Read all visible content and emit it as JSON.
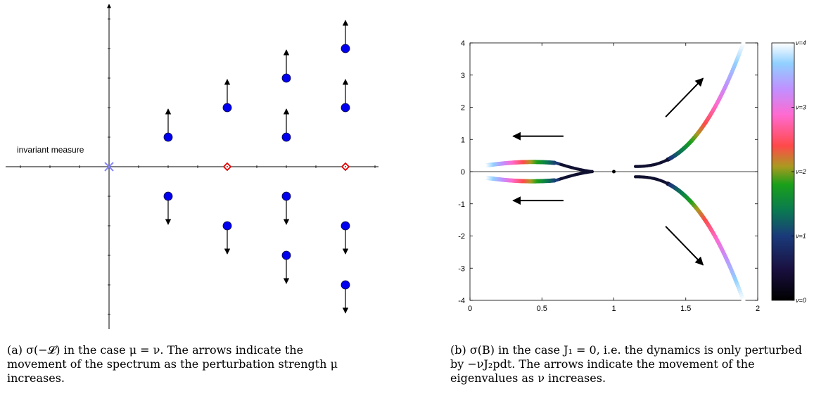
{
  "panel_a": {
    "caption": "(a) σ(−𝓛) in the case μ = ν. The arrows indicate the movement of the spectrum as the perturbation strength μ increases.",
    "annotation": "invariant measure",
    "colors": {
      "eigen": "#0000ee",
      "cross": "#8888ff",
      "diamond": "#e00000"
    }
  },
  "panel_b": {
    "caption": "(b) σ(B) in the case J₁ = 0, i.e. the dynamics is only perturbed by −νJ₂pdt. The arrows indicate the movement of the eigenvalues as ν increases."
  },
  "chart_data": [
    {
      "type": "scatter",
      "title": "",
      "xlabel": "",
      "ylabel": "",
      "grid": false,
      "points": [
        {
          "x": 0,
          "y": 0,
          "marker": "cross"
        },
        {
          "x": 2,
          "y": 0,
          "marker": "diamond"
        },
        {
          "x": 4,
          "y": 0,
          "marker": "diamond"
        },
        {
          "x": 1,
          "y": 1,
          "marker": "dot",
          "arrow": "up"
        },
        {
          "x": 1,
          "y": -1,
          "marker": "dot",
          "arrow": "down"
        },
        {
          "x": 2,
          "y": 2,
          "marker": "dot",
          "arrow": "up"
        },
        {
          "x": 2,
          "y": -2,
          "marker": "dot",
          "arrow": "down"
        },
        {
          "x": 3,
          "y": 1,
          "marker": "dot",
          "arrow": "up"
        },
        {
          "x": 3,
          "y": 3,
          "marker": "dot",
          "arrow": "up"
        },
        {
          "x": 3,
          "y": -1,
          "marker": "dot",
          "arrow": "down"
        },
        {
          "x": 3,
          "y": -3,
          "marker": "dot",
          "arrow": "down"
        },
        {
          "x": 4,
          "y": 2,
          "marker": "dot",
          "arrow": "up"
        },
        {
          "x": 4,
          "y": 4,
          "marker": "dot",
          "arrow": "up"
        },
        {
          "x": 4,
          "y": -2,
          "marker": "dot",
          "arrow": "down"
        },
        {
          "x": 4,
          "y": -4,
          "marker": "dot",
          "arrow": "down"
        }
      ]
    },
    {
      "type": "scatter",
      "title": "",
      "xlabel": "",
      "ylabel": "",
      "xlim": [
        0,
        2
      ],
      "ylim": [
        -4,
        4
      ],
      "xticks": [
        "0",
        "0.5",
        "1",
        "1.5",
        "2"
      ],
      "yticks": [
        "-4",
        "-3",
        "-2",
        "-1",
        "0",
        "1",
        "2",
        "3",
        "4"
      ],
      "colorbar": {
        "labels": [
          "ν=0",
          "ν=1",
          "ν=2",
          "ν=3",
          "ν=4"
        ],
        "range": [
          0,
          4
        ]
      },
      "branches": [
        {
          "x_start": 0.85,
          "x_end": 0.1,
          "shape": "hump-upper",
          "peak_y": 0.3
        },
        {
          "x_start": 0.85,
          "x_end": 0.1,
          "shape": "hump-lower",
          "peak_y": -0.3
        },
        {
          "x_start": 1.15,
          "x_end": 1.9,
          "shape": "rise-upper",
          "end_y": 4
        },
        {
          "x_start": 1.15,
          "x_end": 1.9,
          "shape": "rise-lower",
          "end_y": -4
        }
      ],
      "center_point": {
        "x": 1,
        "y": 0
      },
      "arrows": [
        {
          "from": [
            0.65,
            1.1
          ],
          "to": [
            0.3,
            1.1
          ]
        },
        {
          "from": [
            0.65,
            -0.9
          ],
          "to": [
            0.3,
            -0.9
          ]
        },
        {
          "from": [
            1.36,
            1.7
          ],
          "to": [
            1.62,
            2.9
          ]
        },
        {
          "from": [
            1.36,
            -1.7
          ],
          "to": [
            1.62,
            -2.9
          ]
        }
      ]
    }
  ]
}
